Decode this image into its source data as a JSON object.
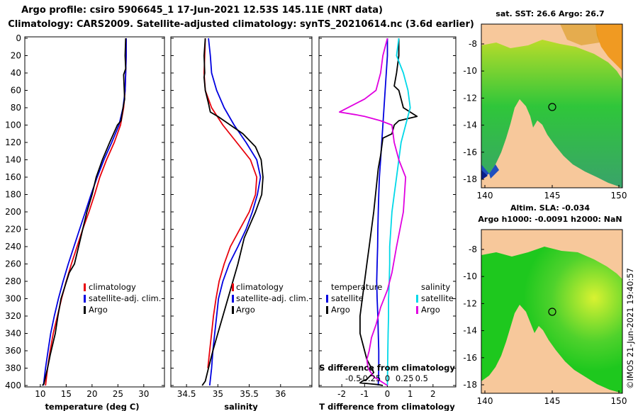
{
  "title_line1": "Argo profile: csiro 5906645_1 17-Jun-2021 12.53S 145.11E (NRT data)",
  "title_line2": "Climatology: CARS2009. Satellite-adjusted climatology: synTS_20210614.nc (3.6d earlier)",
  "colors": {
    "climatology": "#e8000b",
    "satellite": "#0000e0",
    "argo": "#000000",
    "sat_salinity": "#00d8e8",
    "clim_salinity": "#e000e0",
    "land": "#f7c89b"
  },
  "chart_data": [
    {
      "type": "line",
      "id": "temperature",
      "xlabel": "temperature (deg C)",
      "xlim": [
        7,
        34
      ],
      "xticks": [
        10,
        15,
        20,
        25,
        30
      ],
      "ylim": [
        400,
        0
      ],
      "yticks": [
        0,
        20,
        40,
        60,
        80,
        100,
        120,
        140,
        160,
        180,
        200,
        220,
        240,
        260,
        280,
        300,
        320,
        340,
        360,
        380,
        400
      ],
      "legend": [
        "climatology",
        "satellite-adj. clim.",
        "Argo"
      ],
      "series": [
        {
          "name": "climatology",
          "color": "#e8000b",
          "x": [
            26.6,
            26.6,
            26.5,
            26.4,
            26.1,
            25.5,
            24.3,
            22.8,
            21.5,
            20.5,
            19.4,
            18.2,
            17.1,
            16.0,
            15.0,
            14.1,
            13.3,
            12.5,
            11.9,
            11.4,
            11.0
          ],
          "y": [
            0,
            20,
            40,
            60,
            80,
            100,
            120,
            140,
            160,
            180,
            200,
            220,
            240,
            260,
            280,
            300,
            320,
            340,
            360,
            380,
            400
          ]
        },
        {
          "name": "satellite-adj. clim.",
          "color": "#0000e0",
          "x": [
            26.6,
            26.6,
            26.5,
            26.4,
            26.0,
            25.2,
            23.8,
            22.3,
            21.0,
            19.8,
            18.7,
            17.6,
            16.5,
            15.4,
            14.4,
            13.5,
            12.7,
            12.0,
            11.5,
            11.0,
            10.6
          ],
          "y": [
            0,
            20,
            40,
            60,
            80,
            100,
            120,
            140,
            160,
            180,
            200,
            220,
            240,
            260,
            280,
            300,
            320,
            340,
            360,
            380,
            400
          ]
        },
        {
          "name": "Argo",
          "color": "#000000",
          "x": [
            26.5,
            26.4,
            26.5,
            26.1,
            26.3,
            26.0,
            25.6,
            24.9,
            23.4,
            22.0,
            20.8,
            20.0,
            19.0,
            18.2,
            17.4,
            16.6,
            15.6,
            14.8,
            14.0,
            13.4,
            12.9,
            12.5,
            11.9,
            11.4,
            11.0,
            10.7,
            10.4
          ],
          "y": [
            0,
            20,
            35,
            42,
            70,
            80,
            95,
            100,
            120,
            140,
            160,
            180,
            200,
            220,
            240,
            260,
            270,
            285,
            300,
            320,
            340,
            350,
            365,
            380,
            390,
            398,
            400
          ]
        }
      ]
    },
    {
      "type": "line",
      "id": "salinity",
      "xlabel": "salinity",
      "xlim": [
        34.25,
        36.5
      ],
      "xticks": [
        34.5,
        35,
        35.5,
        36
      ],
      "ylim": [
        400,
        0
      ],
      "legend": [
        "climatology",
        "satellite-adj. clim.",
        "Argo"
      ],
      "series": [
        {
          "name": "climatology",
          "color": "#e8000b",
          "x": [
            34.8,
            34.79,
            34.78,
            34.8,
            34.9,
            35.08,
            35.3,
            35.52,
            35.62,
            35.6,
            35.5,
            35.35,
            35.2,
            35.1,
            35.02,
            34.97,
            34.93,
            34.9,
            34.87,
            34.84
          ],
          "y": [
            0,
            20,
            40,
            60,
            80,
            100,
            120,
            140,
            160,
            180,
            200,
            220,
            240,
            260,
            280,
            300,
            320,
            340,
            360,
            380
          ]
        },
        {
          "name": "satellite-adj. clim.",
          "color": "#0000e0",
          "x": [
            34.85,
            34.88,
            34.9,
            34.98,
            35.1,
            35.26,
            35.45,
            35.62,
            35.68,
            35.63,
            35.55,
            35.45,
            35.32,
            35.18,
            35.08,
            35.01,
            34.98,
            34.95,
            34.92,
            34.9,
            34.87
          ],
          "y": [
            0,
            20,
            40,
            60,
            80,
            100,
            120,
            140,
            160,
            180,
            200,
            220,
            240,
            260,
            280,
            300,
            320,
            340,
            360,
            380,
            400
          ]
        },
        {
          "name": "Argo",
          "color": "#000000",
          "x": [
            34.8,
            34.78,
            34.79,
            34.78,
            34.8,
            34.85,
            34.88,
            35.0,
            35.2,
            35.4,
            35.6,
            35.69,
            35.72,
            35.7,
            35.6,
            35.42,
            35.32,
            35.2,
            35.08,
            35.0,
            34.92,
            34.85,
            34.8,
            34.75
          ],
          "y": [
            0,
            20,
            40,
            45,
            60,
            75,
            85,
            90,
            100,
            110,
            125,
            140,
            160,
            180,
            200,
            230,
            260,
            290,
            320,
            340,
            360,
            380,
            395,
            400
          ]
        }
      ]
    },
    {
      "type": "line",
      "id": "difference",
      "xlabel": "T difference from climatology",
      "xlabel_top": "S difference from climatology",
      "xlim": [
        -3,
        3
      ],
      "xticks": [
        -2,
        -1,
        0,
        1,
        2
      ],
      "xticks_s": [
        "-0.5",
        "-0.25",
        "0",
        "0.25",
        "0.5"
      ],
      "ylim": [
        400,
        0
      ],
      "legend_temperature_heading": "temperature",
      "legend_salinity_heading": "salinity",
      "legend_temperature": [
        "satellite",
        "Argo"
      ],
      "legend_salinity": [
        "satellite",
        "Argo"
      ],
      "series": [
        {
          "name": "T satellite-clim",
          "color": "#0000e0",
          "x": [
            0,
            0,
            -0.05,
            -0.1,
            -0.15,
            -0.2,
            -0.25,
            -0.3,
            -0.35,
            -0.38,
            -0.4,
            -0.42,
            -0.43,
            -0.45,
            -0.47,
            -0.45,
            -0.42,
            -0.4,
            -0.38,
            -0.38,
            -0.4
          ],
          "y": [
            0,
            20,
            40,
            60,
            80,
            100,
            120,
            140,
            160,
            180,
            200,
            220,
            240,
            260,
            280,
            300,
            320,
            340,
            360,
            380,
            400
          ]
        },
        {
          "name": "T Argo-clim",
          "color": "#000000",
          "x": [
            0.5,
            0.5,
            0.4,
            0.3,
            0.5,
            0.7,
            1.3,
            0.5,
            0.3,
            0.2,
            -0.2,
            -0.3,
            -0.4,
            -0.5,
            -0.6,
            -0.7,
            -0.8,
            -0.9,
            -1.0,
            -1.1,
            -1.2,
            -1.2,
            -1.0,
            -0.9,
            -0.7,
            -0.6,
            -0.8,
            -0.9,
            -1.1,
            -1.2,
            -0.8,
            -0.4,
            -0.2
          ],
          "y": [
            0,
            20,
            40,
            55,
            60,
            80,
            90,
            95,
            100,
            110,
            115,
            135,
            150,
            175,
            200,
            220,
            240,
            260,
            280,
            300,
            320,
            340,
            360,
            370,
            380,
            385,
            390,
            393,
            395,
            397,
            398,
            399,
            400
          ]
        },
        {
          "name": "S satellite-clim",
          "color": "#00d8e8",
          "x": [
            0.5,
            0.4,
            0.7,
            0.9,
            1.0,
            0.8,
            0.6,
            0.5,
            0.4,
            0.3,
            0.2,
            0.15,
            0.1,
            0.1,
            0.08,
            0.05,
            0.05,
            0.03,
            0.02,
            0.01,
            0
          ],
          "y": [
            0,
            20,
            40,
            60,
            80,
            100,
            120,
            140,
            160,
            180,
            200,
            220,
            240,
            260,
            280,
            300,
            320,
            340,
            360,
            380,
            400
          ]
        },
        {
          "name": "S Argo-clim",
          "color": "#e000e0",
          "x": [
            0,
            -0.2,
            -0.3,
            -0.5,
            -1.0,
            -2.1,
            -1.4,
            -1.0,
            -0.3,
            0.2,
            0.3,
            0.5,
            0.8,
            0.7,
            0.4,
            0.2,
            0.0,
            -0.3,
            -0.5,
            -0.7,
            -0.8,
            -0.9,
            -0.85,
            -0.6,
            -0.3,
            0
          ],
          "y": [
            0,
            20,
            40,
            60,
            70,
            85,
            88,
            90,
            95,
            100,
            120,
            140,
            160,
            200,
            240,
            270,
            290,
            310,
            330,
            345,
            360,
            370,
            380,
            390,
            395,
            400
          ]
        }
      ]
    }
  ],
  "maps": {
    "top": {
      "title": "sat. SST: 26.6 Argo: 26.7",
      "yticks": [
        "-8",
        "-10",
        "-12",
        "-14",
        "-16",
        "-18"
      ],
      "xticks": [
        "140",
        "145",
        "150"
      ]
    },
    "bottom": {
      "title_line1": "Altim. SLA: -0.034",
      "title_line2": "Argo h1000: -0.0091 h2000: NaN",
      "yticks": [
        "-8",
        "-10",
        "-12",
        "-14",
        "-16",
        "-18"
      ],
      "xticks": [
        "140",
        "145",
        "150"
      ]
    }
  },
  "watermark": "©IMOS 21-Jun-2021 19:40:57"
}
